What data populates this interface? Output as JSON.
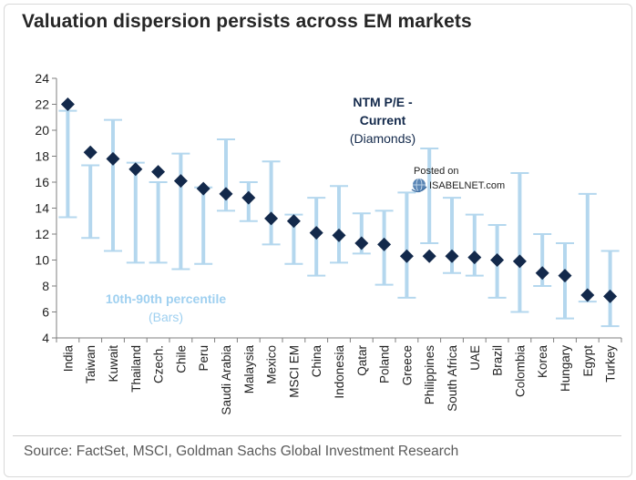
{
  "title": "Valuation dispersion persists across EM markets",
  "source": "Source: FactSet, MSCI, Goldman Sachs Global Investment Research",
  "colors": {
    "bar": "#b4d7ee",
    "diamond": "#13294b",
    "annot_dark": "#13294b",
    "annot_light": "#9fd0f0"
  },
  "annotations": {
    "current_title_1": "NTM P/E -",
    "current_title_2": "Current",
    "current_sub": "(Diamonds)",
    "percentile_title": "10th-90th  percentile",
    "percentile_sub": "(Bars)"
  },
  "watermark": {
    "line1": "Posted on",
    "line2": "ISABELNET.com",
    "icon": "globe-icon"
  },
  "chart_data": {
    "type": "scatter",
    "title": "Valuation dispersion persists across EM markets",
    "xlabel": "",
    "ylabel": "",
    "ylim": [
      4,
      24
    ],
    "yticks": [
      4,
      6,
      8,
      10,
      12,
      14,
      16,
      18,
      20,
      22,
      24
    ],
    "grid": false,
    "categories": [
      "India",
      "Taiwan",
      "Kuwait",
      "Thailand",
      "Czech.",
      "Chile",
      "Peru",
      "Saudi Arabia",
      "Malaysia",
      "Mexico",
      "MSCI EM",
      "China",
      "Indonesia",
      "Qatar",
      "Poland",
      "Greece",
      "Philippines",
      "South Africa",
      "UAE",
      "Brazil",
      "Colombia",
      "Korea",
      "Hungary",
      "Egypt",
      "Turkey"
    ],
    "series": [
      {
        "name": "NTM P/E - Current (Diamonds)",
        "values": [
          22.0,
          18.3,
          17.8,
          17.0,
          16.8,
          16.1,
          15.5,
          15.1,
          14.8,
          13.2,
          13.0,
          12.1,
          11.9,
          11.3,
          11.2,
          10.3,
          10.3,
          10.3,
          10.2,
          10.0,
          9.9,
          9.0,
          8.8,
          7.3,
          7.2
        ]
      },
      {
        "name": "10th percentile",
        "values": [
          13.3,
          11.7,
          10.7,
          9.8,
          9.8,
          9.3,
          9.7,
          13.8,
          13.0,
          11.2,
          9.7,
          8.8,
          9.8,
          10.5,
          8.1,
          7.1,
          11.3,
          9.0,
          8.8,
          7.1,
          6.0,
          8.0,
          5.5,
          6.8,
          4.9
        ]
      },
      {
        "name": "90th percentile",
        "values": [
          21.5,
          17.3,
          20.8,
          17.5,
          16.0,
          18.2,
          15.6,
          19.3,
          16.0,
          17.6,
          13.5,
          14.8,
          15.7,
          13.6,
          13.8,
          15.2,
          18.6,
          14.8,
          13.5,
          12.7,
          16.7,
          12.0,
          11.3,
          15.1,
          10.7
        ]
      }
    ]
  }
}
